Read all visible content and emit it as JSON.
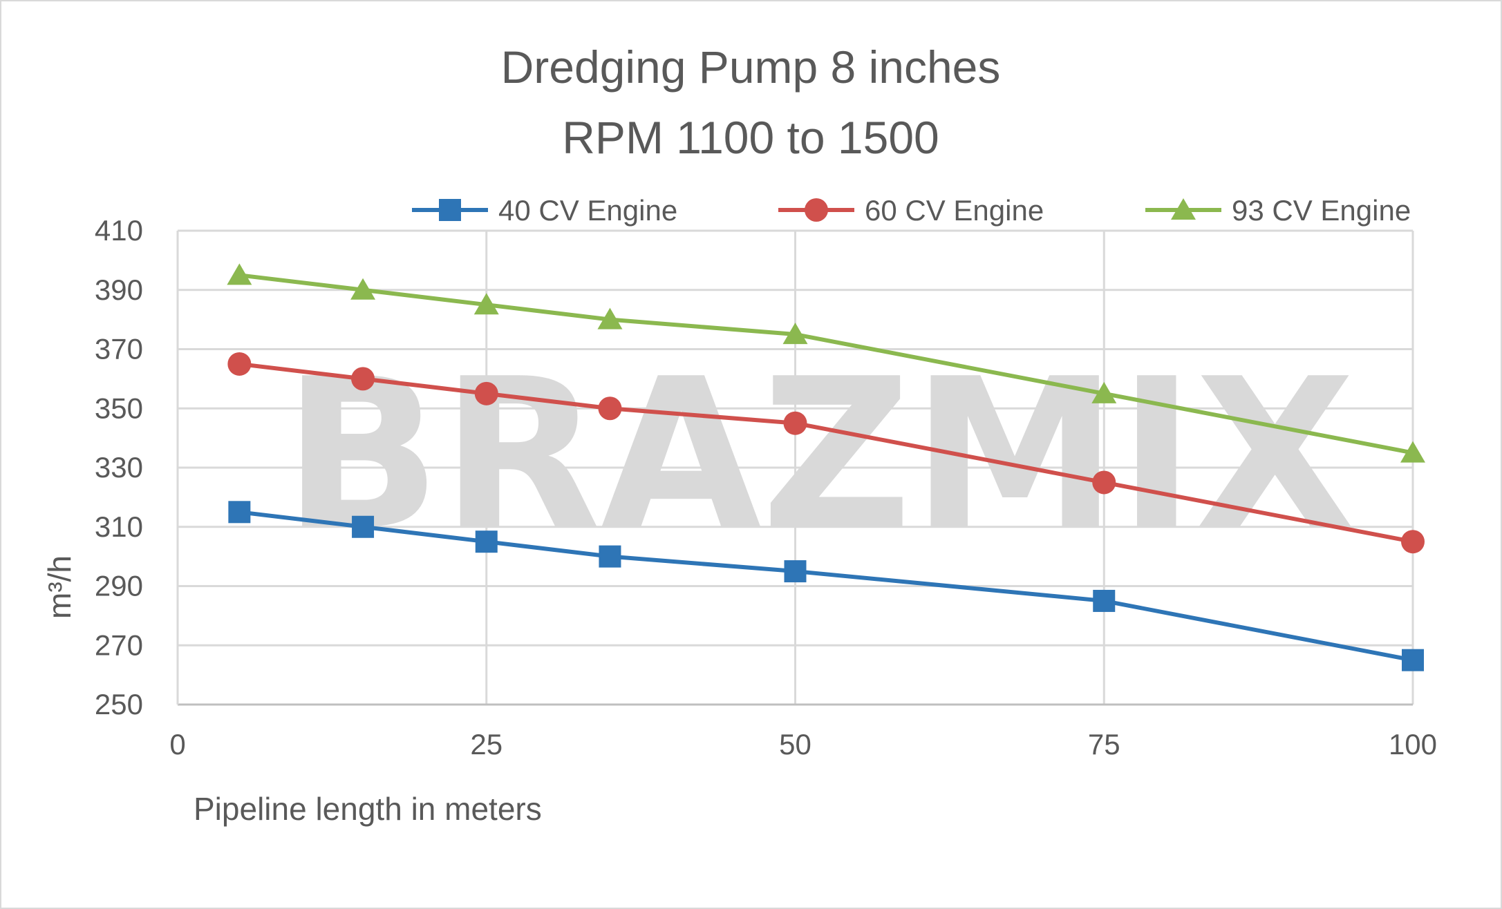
{
  "chart_data": {
    "type": "line",
    "title_lines": [
      "Dredging Pump 8 inches",
      "RPM 1100 to 1500"
    ],
    "xlabel": "Pipeline length in meters",
    "ylabel": "m³/h",
    "xlim": [
      0,
      100
    ],
    "ylim": [
      250,
      410
    ],
    "x_ticks": [
      0,
      25,
      50,
      75,
      100
    ],
    "y_ticks": [
      250,
      270,
      290,
      310,
      330,
      350,
      370,
      390,
      410
    ],
    "grid": true,
    "legend_position": "top",
    "watermark": "BRAZMIX",
    "series": [
      {
        "name": "40 CV Engine",
        "color": "#2e75b6",
        "marker": "square",
        "x": [
          5,
          15,
          25,
          35,
          50,
          75,
          100
        ],
        "y": [
          315,
          310,
          305,
          300,
          295,
          285,
          265
        ]
      },
      {
        "name": "60 CV Engine",
        "color": "#d0504c",
        "marker": "circle",
        "x": [
          5,
          15,
          25,
          35,
          50,
          75,
          100
        ],
        "y": [
          365,
          360,
          355,
          350,
          345,
          325,
          305
        ]
      },
      {
        "name": "93 CV Engine",
        "color": "#8bb84f",
        "marker": "triangle",
        "x": [
          5,
          15,
          25,
          35,
          50,
          75,
          100
        ],
        "y": [
          395,
          390,
          385,
          380,
          375,
          355,
          335
        ]
      }
    ]
  }
}
